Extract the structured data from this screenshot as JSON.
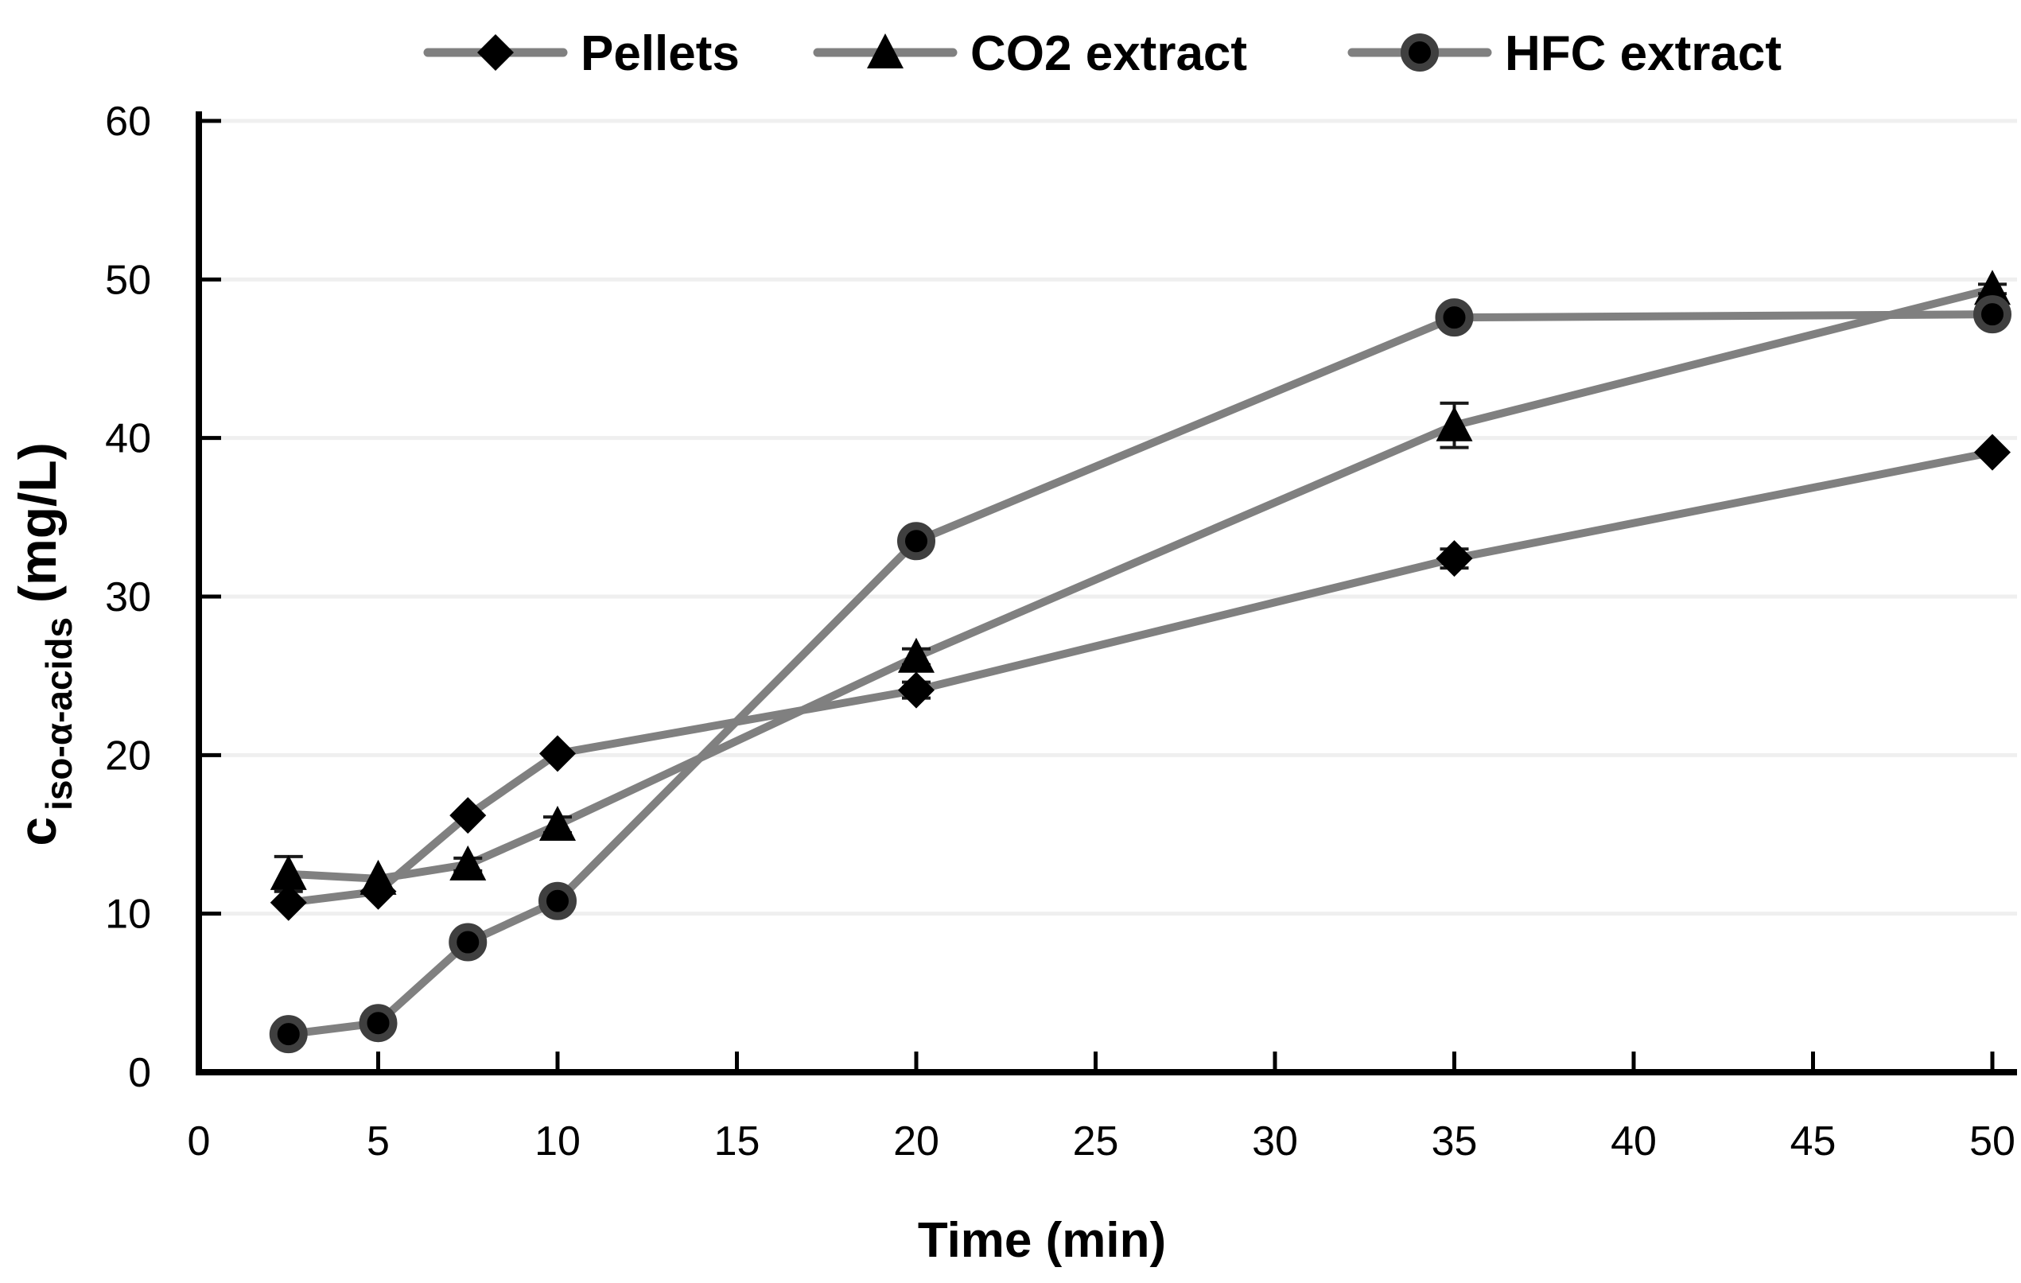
{
  "chart_data": {
    "type": "line",
    "title": "",
    "xlabel": "Time (min)",
    "ylabel_main": "c",
    "ylabel_sub": "iso-α-acids",
    "ylabel_unit": "(mg/L)",
    "xlim": [
      0,
      50
    ],
    "ylim": [
      0,
      60
    ],
    "x_ticks": [
      0,
      5,
      10,
      15,
      20,
      25,
      30,
      35,
      40,
      45,
      50
    ],
    "y_ticks": [
      0,
      10,
      20,
      30,
      40,
      50,
      60
    ],
    "grid": "horizontal",
    "legend_position": "top-center",
    "x": [
      2.5,
      5,
      7.5,
      10,
      20,
      35,
      50
    ],
    "series": [
      {
        "name": "Pellets",
        "marker": "diamond",
        "values": [
          10.7,
          11.4,
          16.2,
          20.1,
          24.1,
          32.4,
          39.1
        ],
        "errors": [
          0,
          0,
          0,
          0,
          0.5,
          0.6,
          0
        ]
      },
      {
        "name": "CO2 extract",
        "marker": "triangle",
        "values": [
          12.5,
          12.2,
          13.1,
          15.6,
          26.2,
          40.8,
          49.4
        ],
        "errors": [
          1.1,
          0,
          0.4,
          0.5,
          0.5,
          1.4,
          0.3
        ]
      },
      {
        "name": "HFC extract",
        "marker": "circle",
        "values": [
          2.4,
          3.1,
          8.2,
          10.8,
          33.5,
          47.6,
          47.8
        ],
        "errors": [
          0,
          0,
          0,
          0,
          0,
          0,
          0
        ]
      }
    ]
  },
  "colors": {
    "series_line": "#808080",
    "marker_fill": "#000000",
    "circle_ring": "#3f3f3f",
    "error_bar": "#1a1a1a",
    "gridline": "#efefef",
    "axis": "#000000",
    "text": "#000000",
    "background": "#ffffff"
  }
}
